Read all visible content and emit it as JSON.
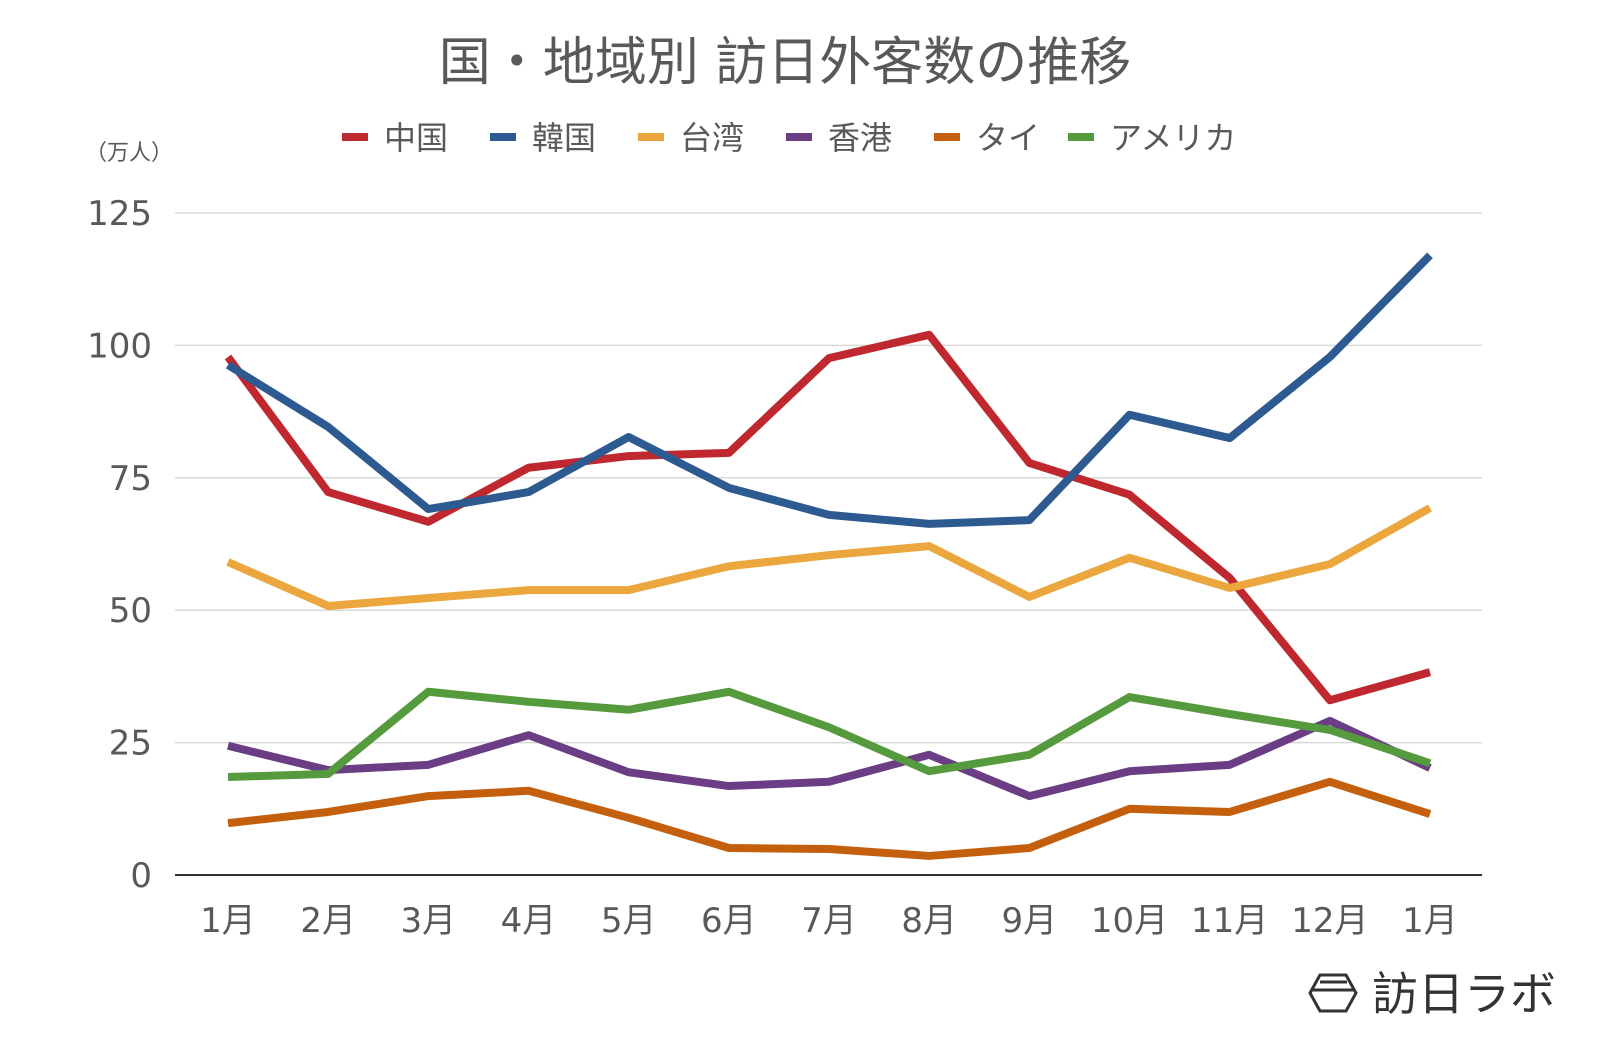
{
  "chart_data": {
    "type": "line",
    "title": "国・地域別 訪日外客数の推移",
    "ylabel": "（万人）",
    "xlabel": "",
    "categories": [
      "1月",
      "2月",
      "3月",
      "4月",
      "5月",
      "6月",
      "7月",
      "8月",
      "9月",
      "10月",
      "11月",
      "12月",
      "1月"
    ],
    "ylim": [
      0,
      125
    ],
    "yticks": [
      0,
      25,
      50,
      75,
      100,
      125
    ],
    "grid": true,
    "legend_position": "top",
    "series": [
      {
        "name": "中国",
        "color": "#c0282f",
        "values": [
          97.8,
          72.3,
          66.7,
          76.9,
          79.1,
          79.7,
          97.6,
          102,
          77.8,
          71.8,
          56.1,
          33,
          38.3
        ]
      },
      {
        "name": "韓国",
        "color": "#2d5a91",
        "values": [
          96.3,
          84.6,
          69.1,
          72.3,
          82.7,
          73.1,
          68,
          66.3,
          67,
          86.9,
          82.5,
          97.8,
          117
        ]
      },
      {
        "name": "台湾",
        "color": "#eba63e",
        "values": [
          59.1,
          50.8,
          52.3,
          53.8,
          53.8,
          58.3,
          60.4,
          62.1,
          52.5,
          59.9,
          54.2,
          58.7,
          69.3
        ]
      },
      {
        "name": "香港",
        "color": "#6a3d84",
        "values": [
          24.4,
          19.8,
          20.8,
          26.4,
          19.4,
          16.8,
          17.6,
          22.7,
          14.9,
          19.6,
          20.8,
          29.1,
          20.2
        ]
      },
      {
        "name": "タイ",
        "color": "#c45f0d",
        "values": [
          9.8,
          11.9,
          14.9,
          15.9,
          10.8,
          5.1,
          4.9,
          3.6,
          5.1,
          12.5,
          11.9,
          17.6,
          11.5
        ]
      },
      {
        "name": "アメリカ",
        "color": "#569a3e",
        "values": [
          18.5,
          19.1,
          34.6,
          32.7,
          31.2,
          34.6,
          27.9,
          19.6,
          22.7,
          33.6,
          30.4,
          27.4,
          21.1
        ]
      }
    ]
  },
  "watermark": {
    "text": "訪日ラボ"
  }
}
